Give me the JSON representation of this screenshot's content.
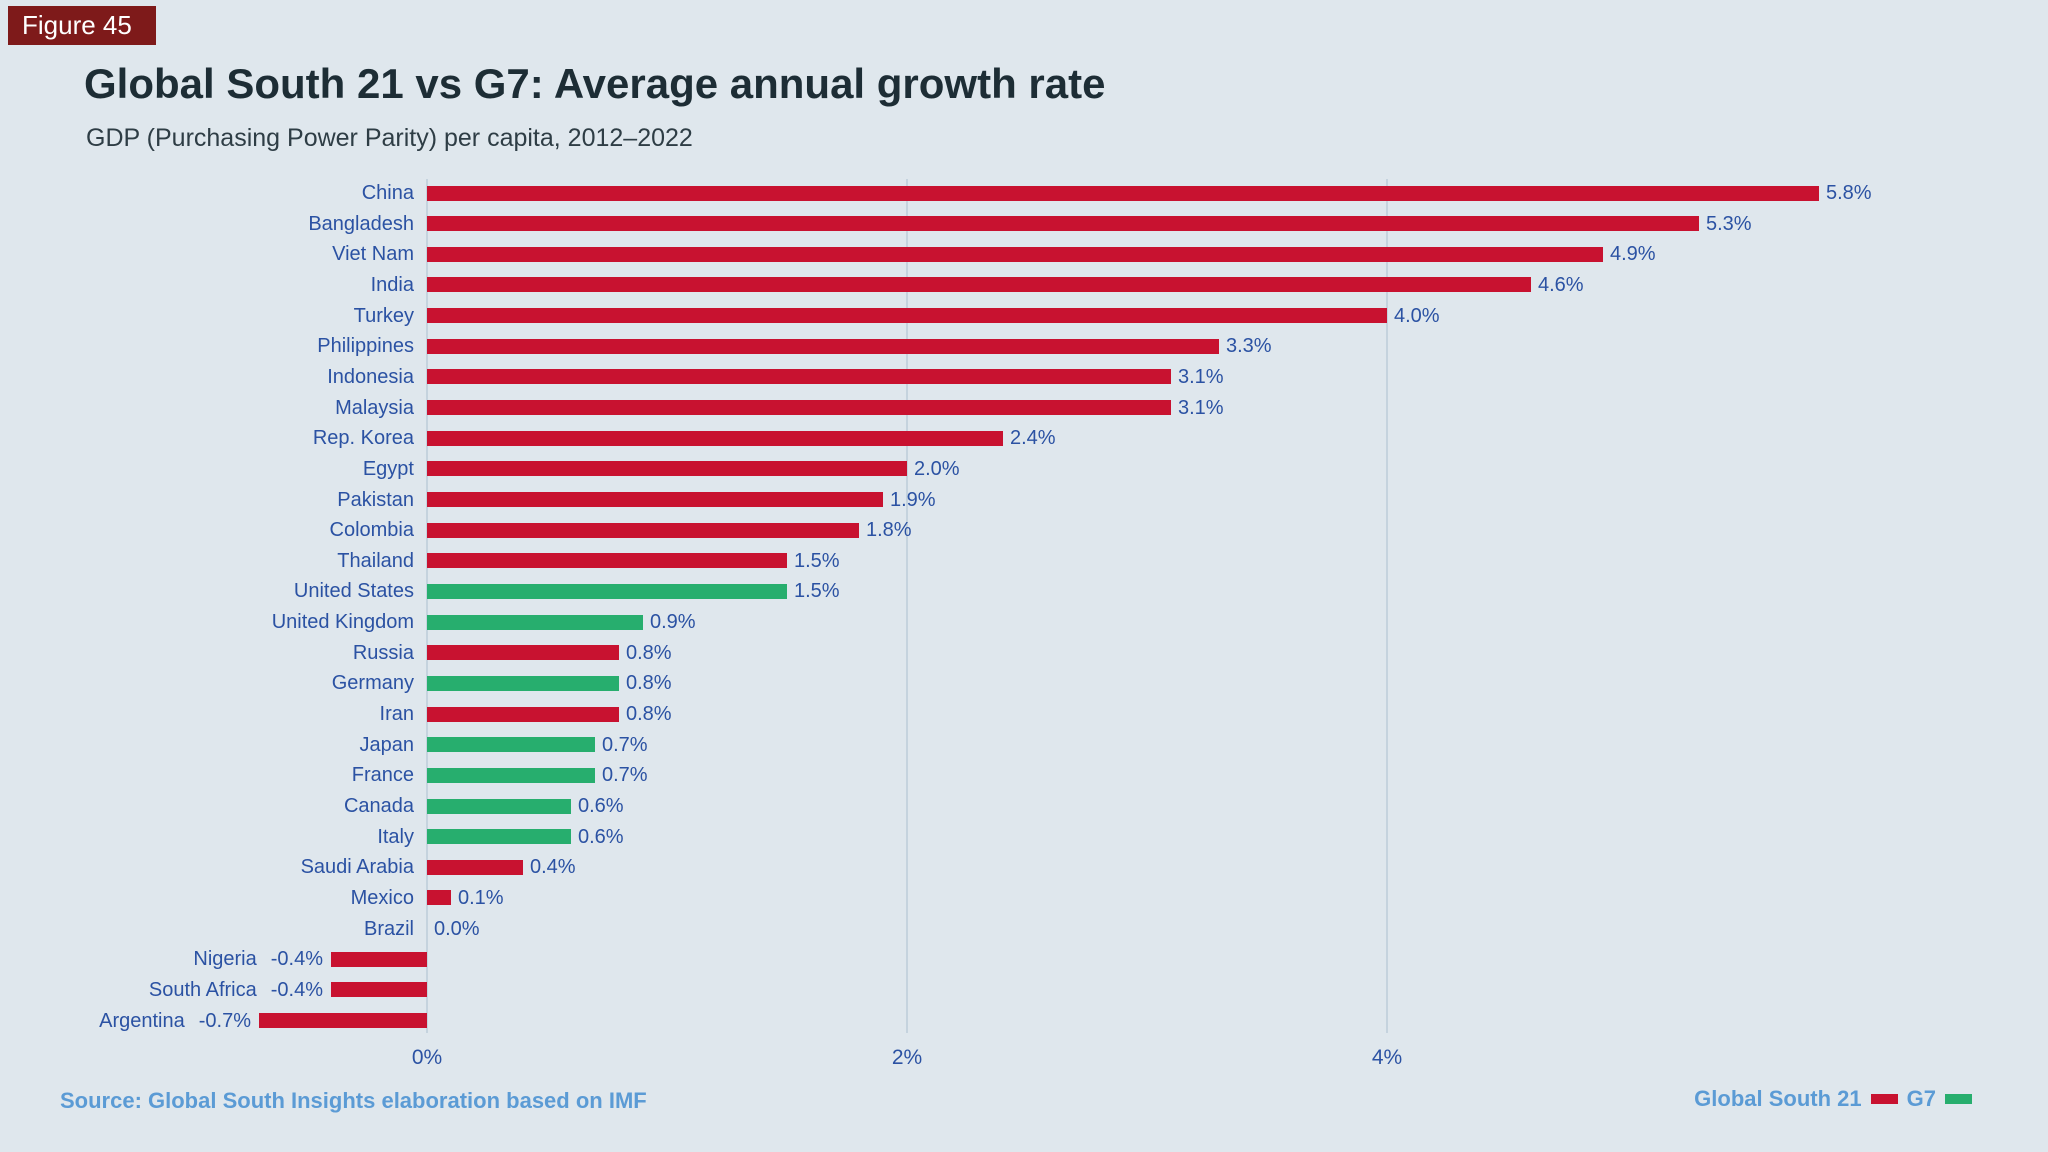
{
  "figure_label": "Figure 45",
  "title": "Global South 21 vs G7: Average annual growth rate",
  "subtitle": "GDP (Purchasing Power Parity) per capita, 2012–2022",
  "source": "Source: Global South Insights elaboration based on IMF",
  "colors": {
    "background": "#dfe7ed",
    "badge_background": "#7e1a1a",
    "badge_text": "#ffffff",
    "title_text": "#1d2d35",
    "label_blue": "#2b52a3",
    "accent_blue": "#5b9bd5",
    "gridline": "#c5d3de",
    "global_south_red": "#c81230",
    "g7_green": "#27ae6e"
  },
  "legend": [
    {
      "key": "gs21",
      "label": "Global South 21",
      "color": "#c81230"
    },
    {
      "key": "g7",
      "label": "G7",
      "color": "#27ae6e"
    }
  ],
  "chart_data": {
    "type": "bar",
    "orientation": "horizontal",
    "unit": "percent",
    "xlabel": "",
    "ylabel": "",
    "xlim": [
      -1.0,
      6.2
    ],
    "x_ticks": [
      {
        "value": 0,
        "label": "0%"
      },
      {
        "value": 2,
        "label": "2%"
      },
      {
        "value": 4,
        "label": "4%"
      }
    ],
    "grid": "vertical-only",
    "legend_position": "bottom-right",
    "rows": [
      {
        "country": "China",
        "value": 5.8,
        "label": "5.8%",
        "group": "gs21"
      },
      {
        "country": "Bangladesh",
        "value": 5.3,
        "label": "5.3%",
        "group": "gs21"
      },
      {
        "country": "Viet Nam",
        "value": 4.9,
        "label": "4.9%",
        "group": "gs21"
      },
      {
        "country": "India",
        "value": 4.6,
        "label": "4.6%",
        "group": "gs21"
      },
      {
        "country": "Turkey",
        "value": 4.0,
        "label": "4.0%",
        "group": "gs21"
      },
      {
        "country": "Philippines",
        "value": 3.3,
        "label": "3.3%",
        "group": "gs21"
      },
      {
        "country": "Indonesia",
        "value": 3.1,
        "label": "3.1%",
        "group": "gs21"
      },
      {
        "country": "Malaysia",
        "value": 3.1,
        "label": "3.1%",
        "group": "gs21"
      },
      {
        "country": "Rep. Korea",
        "value": 2.4,
        "label": "2.4%",
        "group": "gs21"
      },
      {
        "country": "Egypt",
        "value": 2.0,
        "label": "2.0%",
        "group": "gs21"
      },
      {
        "country": "Pakistan",
        "value": 1.9,
        "label": "1.9%",
        "group": "gs21"
      },
      {
        "country": "Colombia",
        "value": 1.8,
        "label": "1.8%",
        "group": "gs21"
      },
      {
        "country": "Thailand",
        "value": 1.5,
        "label": "1.5%",
        "group": "gs21"
      },
      {
        "country": "United States",
        "value": 1.5,
        "label": "1.5%",
        "group": "g7"
      },
      {
        "country": "United Kingdom",
        "value": 0.9,
        "label": "0.9%",
        "group": "g7"
      },
      {
        "country": "Russia",
        "value": 0.8,
        "label": "0.8%",
        "group": "gs21"
      },
      {
        "country": "Germany",
        "value": 0.8,
        "label": "0.8%",
        "group": "g7"
      },
      {
        "country": "Iran",
        "value": 0.8,
        "label": "0.8%",
        "group": "gs21"
      },
      {
        "country": "Japan",
        "value": 0.7,
        "label": "0.7%",
        "group": "g7"
      },
      {
        "country": "France",
        "value": 0.7,
        "label": "0.7%",
        "group": "g7"
      },
      {
        "country": "Canada",
        "value": 0.6,
        "label": "0.6%",
        "group": "g7"
      },
      {
        "country": "Italy",
        "value": 0.6,
        "label": "0.6%",
        "group": "g7"
      },
      {
        "country": "Saudi Arabia",
        "value": 0.4,
        "label": "0.4%",
        "group": "gs21"
      },
      {
        "country": "Mexico",
        "value": 0.1,
        "label": "0.1%",
        "group": "gs21"
      },
      {
        "country": "Brazil",
        "value": 0.0,
        "label": "0.0%",
        "group": "gs21"
      },
      {
        "country": "Nigeria",
        "value": -0.4,
        "label": "-0.4%",
        "group": "gs21"
      },
      {
        "country": "South Africa",
        "value": -0.4,
        "label": "-0.4%",
        "group": "gs21"
      },
      {
        "country": "Argentina",
        "value": -0.7,
        "label": "-0.7%",
        "group": "gs21"
      }
    ]
  }
}
